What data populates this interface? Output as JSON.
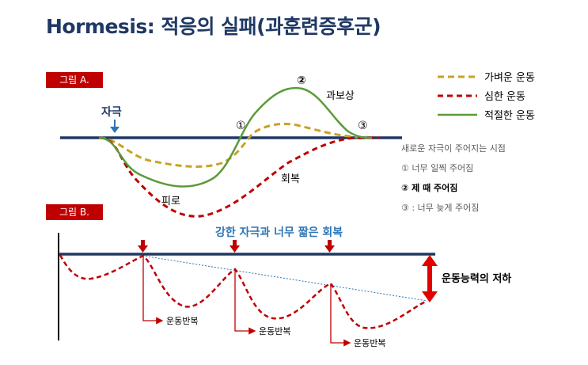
{
  "title": "Hormesis: 적응의 실패(과훈련증후군)",
  "figure_a": {
    "tag": "그림 A.",
    "stimulus_label": "자극",
    "points": {
      "p1": "①",
      "p2": "②",
      "p3": "③"
    },
    "labels": {
      "overtraining": "과보상",
      "fatigue": "피로",
      "recovery": "회복"
    },
    "legend": [
      {
        "label": "가벼운 운동",
        "color": "#c9a227",
        "style": "dashed"
      },
      {
        "label": "심한 운동",
        "color": "#c00000",
        "style": "dashed"
      },
      {
        "label": "적절한 운동",
        "color": "#5b9b3a",
        "style": "solid"
      }
    ],
    "notes": {
      "heading": "새로운 자극이 주어지는 시점",
      "n1": "① 너무 일찍 주어짐",
      "n2": "② 제 때 주어짐",
      "n3": "③ : 너무 늦게 주어짐"
    }
  },
  "figure_b": {
    "tag": "그림 B.",
    "header": "강한 자극과 너무 짧은 회복",
    "decline_label": "운동능력의 저하",
    "repeat_label": "운동반복"
  },
  "colors": {
    "navy": "#1f3864",
    "red": "#c00000",
    "gold": "#c9a227",
    "green": "#5b9b3a",
    "blue": "#2e75b6"
  }
}
